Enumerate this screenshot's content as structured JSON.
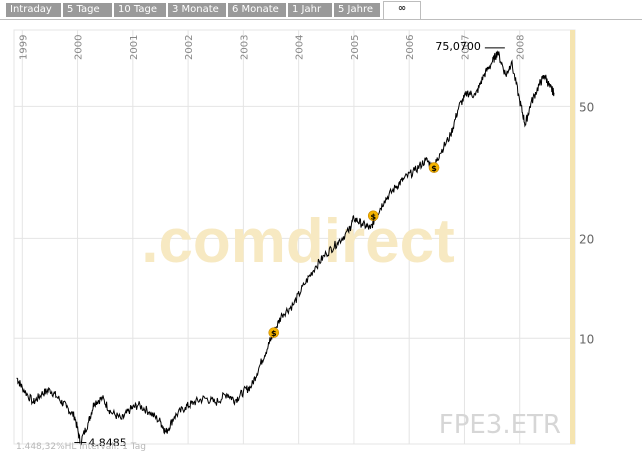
{
  "tabs": [
    {
      "label": "Intraday"
    },
    {
      "label": "5 Tage"
    },
    {
      "label": "10 Tage"
    },
    {
      "label": "3 Monate"
    },
    {
      "label": "6 Monate"
    },
    {
      "label": "1 Jahr"
    },
    {
      "label": "5 Jahre"
    },
    {
      "label": "∞"
    }
  ],
  "active_tab": "∞",
  "watermark": ".comdirect",
  "symbol": "FPE3.ETR",
  "footer": "1.448,32%HL Intervall: 1 Tag",
  "colors": {
    "tab_bg": "#9a9a9a",
    "grid": "#e4e4e4",
    "line": "#000000",
    "marker": "#f4b400",
    "watermark": "#f7e9c2",
    "symbol": "#d6d6d6",
    "highlight": "#f5e4b0"
  },
  "chart_data": {
    "type": "line",
    "x_tick_labels": [
      "1999",
      "2000",
      "2001",
      "2002",
      "2003",
      "2004",
      "2005",
      "2006",
      "2007",
      "2008"
    ],
    "y_scale": "log",
    "y_tick_labels": [
      "10",
      "20",
      "50"
    ],
    "y_ticks": [
      10,
      20,
      50
    ],
    "ylim": [
      4.8,
      85
    ],
    "xlim": [
      1998.85,
      2009.0
    ],
    "annotations": [
      {
        "label": "75,0700",
        "x": 2007.55,
        "y": 75.07
      },
      {
        "label": "4,8485",
        "x": 2000.05,
        "y": 4.8485
      }
    ],
    "dividend_markers": [
      {
        "x": 2003.55,
        "y": 10.4
      },
      {
        "x": 2005.35,
        "y": 23.4
      },
      {
        "x": 2006.45,
        "y": 32.7
      }
    ],
    "series": [
      {
        "values": [
          [
            1998.9,
            7.6
          ],
          [
            1999.0,
            7.1
          ],
          [
            1999.2,
            6.4
          ],
          [
            1999.35,
            6.8
          ],
          [
            1999.5,
            7.0
          ],
          [
            1999.65,
            6.6
          ],
          [
            1999.8,
            6.2
          ],
          [
            1999.95,
            5.8
          ],
          [
            2000.05,
            4.85
          ],
          [
            2000.2,
            5.6
          ],
          [
            2000.3,
            6.4
          ],
          [
            2000.45,
            6.6
          ],
          [
            2000.6,
            6.0
          ],
          [
            2000.8,
            5.7
          ],
          [
            2000.95,
            6.1
          ],
          [
            2001.1,
            6.3
          ],
          [
            2001.3,
            6.0
          ],
          [
            2001.5,
            5.6
          ],
          [
            2001.6,
            5.2
          ],
          [
            2001.75,
            5.8
          ],
          [
            2001.95,
            6.2
          ],
          [
            2002.1,
            6.4
          ],
          [
            2002.3,
            6.6
          ],
          [
            2002.5,
            6.4
          ],
          [
            2002.7,
            6.8
          ],
          [
            2002.85,
            6.5
          ],
          [
            2003.0,
            6.9
          ],
          [
            2003.15,
            7.2
          ],
          [
            2003.3,
            8.3
          ],
          [
            2003.45,
            9.5
          ],
          [
            2003.55,
            10.4
          ],
          [
            2003.7,
            11.8
          ],
          [
            2003.9,
            12.6
          ],
          [
            2004.1,
            14.5
          ],
          [
            2004.3,
            16.4
          ],
          [
            2004.5,
            18.0
          ],
          [
            2004.7,
            19.4
          ],
          [
            2004.9,
            21.0
          ],
          [
            2005.0,
            23.0
          ],
          [
            2005.15,
            22.1
          ],
          [
            2005.3,
            21.4
          ],
          [
            2005.4,
            23.4
          ],
          [
            2005.55,
            26.0
          ],
          [
            2005.75,
            28.5
          ],
          [
            2005.9,
            30.2
          ],
          [
            2006.1,
            32.0
          ],
          [
            2006.3,
            34.5
          ],
          [
            2006.45,
            32.7
          ],
          [
            2006.55,
            36.0
          ],
          [
            2006.75,
            41.0
          ],
          [
            2006.9,
            50.0
          ],
          [
            2007.05,
            55.0
          ],
          [
            2007.2,
            54.0
          ],
          [
            2007.35,
            62.0
          ],
          [
            2007.5,
            68.0
          ],
          [
            2007.6,
            73.0
          ],
          [
            2007.75,
            62.0
          ],
          [
            2007.85,
            68.0
          ],
          [
            2008.0,
            52.0
          ],
          [
            2008.1,
            44.0
          ],
          [
            2008.2,
            51.0
          ],
          [
            2008.35,
            58.0
          ],
          [
            2008.45,
            62.0
          ],
          [
            2008.55,
            57.0
          ],
          [
            2008.62,
            55.0
          ]
        ]
      }
    ]
  }
}
